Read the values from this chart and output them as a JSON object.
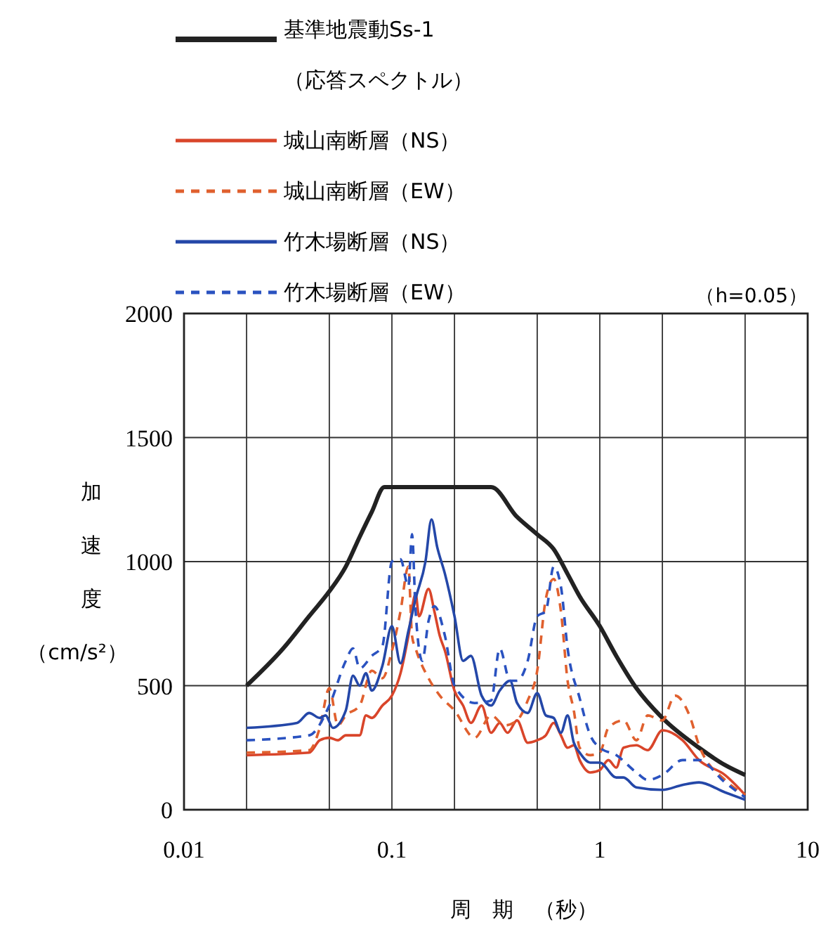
{
  "chart_data": {
    "type": "line",
    "xlabel": "周　期　（秒）",
    "ylabel": "加速度（cm/s²）",
    "annotations": [
      "（h=0.05）"
    ],
    "log": "x",
    "grid": true,
    "legend": "top",
    "marker": "none",
    "xlim": [
      0.01,
      10
    ],
    "xticks": [
      0.01,
      {
        "value": 0.02,
        "label": null
      },
      {
        "value": 0.05,
        "label": null
      },
      0.1,
      {
        "value": 0.2,
        "label": null
      },
      {
        "value": 0.5,
        "label": null
      },
      1,
      {
        "value": 2,
        "label": null
      },
      {
        "value": 5,
        "label": null
      },
      10
    ],
    "ylim": [
      0,
      2000
    ],
    "yticks": [
      0,
      500,
      1000,
      1500,
      2000
    ],
    "series": [
      {
        "name": "基準地震動Ss-1\n（応答スペクトル）",
        "color": "#222222",
        "line_style": "solid",
        "x": [
          0.02,
          0.03,
          0.04,
          0.05,
          0.06,
          0.07,
          0.08,
          0.092,
          0.3,
          0.4,
          0.5,
          0.6,
          0.7,
          0.8,
          1,
          1.2,
          1.5,
          2,
          3,
          4,
          5
        ],
        "values": [
          500,
          650,
          780,
          880,
          980,
          1100,
          1200,
          1300,
          1300,
          1180,
          1110,
          1050,
          950,
          860,
          740,
          620,
          490,
          370,
          250,
          180,
          140
        ]
      },
      {
        "name": "城山南断層（NS）",
        "color": "#d9452a",
        "line_style": "solid",
        "x": [
          0.02,
          0.04,
          0.045,
          0.05,
          0.055,
          0.06,
          0.07,
          0.075,
          0.08,
          0.09,
          0.1,
          0.11,
          0.12,
          0.13,
          0.135,
          0.15,
          0.16,
          0.17,
          0.18,
          0.2,
          0.22,
          0.24,
          0.27,
          0.3,
          0.33,
          0.36,
          0.4,
          0.45,
          0.5,
          0.55,
          0.6,
          0.65,
          0.7,
          0.75,
          0.8,
          0.9,
          1,
          1.1,
          1.2,
          1.3,
          1.5,
          1.7,
          2,
          2.5,
          3,
          4,
          5
        ],
        "values": [
          220,
          230,
          280,
          290,
          280,
          300,
          300,
          380,
          370,
          420,
          460,
          550,
          700,
          870,
          780,
          890,
          800,
          700,
          640,
          480,
          420,
          350,
          420,
          310,
          350,
          310,
          360,
          270,
          280,
          300,
          350,
          300,
          250,
          260,
          200,
          150,
          160,
          200,
          170,
          250,
          260,
          240,
          320,
          280,
          200,
          140,
          60
        ]
      },
      {
        "name": "城山南断層（EW）",
        "color": "#e0602e",
        "line_style": "dashed",
        "x": [
          0.02,
          0.04,
          0.045,
          0.05,
          0.055,
          0.06,
          0.07,
          0.08,
          0.09,
          0.1,
          0.11,
          0.12,
          0.125,
          0.13,
          0.15,
          0.17,
          0.2,
          0.25,
          0.3,
          0.35,
          0.4,
          0.45,
          0.5,
          0.55,
          0.6,
          0.65,
          0.7,
          0.75,
          0.8,
          0.9,
          1,
          1.1,
          1.3,
          1.5,
          1.7,
          2,
          2.3,
          2.7,
          3,
          4,
          5
        ],
        "values": [
          230,
          240,
          330,
          490,
          340,
          380,
          420,
          560,
          530,
          640,
          800,
          980,
          700,
          650,
          530,
          460,
          400,
          290,
          380,
          340,
          360,
          440,
          560,
          850,
          930,
          800,
          520,
          400,
          250,
          220,
          230,
          330,
          360,
          280,
          380,
          360,
          460,
          380,
          260,
          120,
          60
        ]
      },
      {
        "name": "竹木場断層（NS）",
        "color": "#2447a8",
        "line_style": "solid",
        "x": [
          0.02,
          0.035,
          0.04,
          0.045,
          0.048,
          0.052,
          0.06,
          0.065,
          0.07,
          0.075,
          0.08,
          0.09,
          0.1,
          0.11,
          0.12,
          0.13,
          0.145,
          0.155,
          0.165,
          0.18,
          0.2,
          0.22,
          0.24,
          0.27,
          0.3,
          0.33,
          0.37,
          0.4,
          0.45,
          0.5,
          0.55,
          0.6,
          0.65,
          0.7,
          0.75,
          0.8,
          0.9,
          1,
          1.2,
          1.3,
          1.5,
          2,
          2.5,
          3,
          4,
          5
        ],
        "values": [
          330,
          350,
          390,
          370,
          380,
          330,
          400,
          540,
          500,
          550,
          480,
          580,
          740,
          590,
          720,
          850,
          1000,
          1170,
          1060,
          950,
          780,
          600,
          620,
          460,
          420,
          480,
          520,
          430,
          390,
          470,
          380,
          370,
          310,
          380,
          270,
          230,
          190,
          190,
          130,
          130,
          90,
          80,
          100,
          110,
          70,
          40
        ]
      },
      {
        "name": "竹木場断層（EW）",
        "color": "#2a52c0",
        "line_style": "dashed",
        "x": [
          0.02,
          0.04,
          0.05,
          0.06,
          0.065,
          0.07,
          0.08,
          0.09,
          0.1,
          0.11,
          0.12,
          0.125,
          0.13,
          0.14,
          0.15,
          0.16,
          0.18,
          0.2,
          0.25,
          0.3,
          0.33,
          0.37,
          0.4,
          0.45,
          0.5,
          0.55,
          0.6,
          0.65,
          0.7,
          0.8,
          0.9,
          1,
          1.2,
          1.5,
          1.7,
          2,
          2.5,
          3,
          4,
          5
        ],
        "values": [
          280,
          300,
          420,
          600,
          650,
          570,
          620,
          660,
          1000,
          1010,
          900,
          1110,
          800,
          600,
          760,
          820,
          700,
          500,
          430,
          440,
          650,
          520,
          520,
          600,
          780,
          800,
          980,
          900,
          650,
          450,
          300,
          250,
          220,
          150,
          120,
          140,
          200,
          200,
          110,
          50
        ]
      }
    ]
  }
}
